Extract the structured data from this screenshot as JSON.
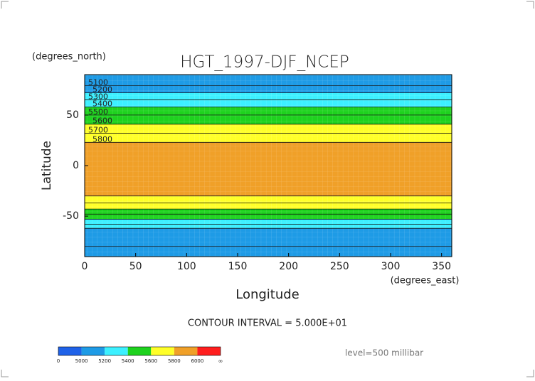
{
  "chart_data": {
    "type": "contour",
    "title": "HGT_1997-DJF_NCEP",
    "y_unit_label": "(degrees_north)",
    "x_unit_label": "(degrees_east)",
    "ylabel": "Latitude",
    "xlabel": "Longitude",
    "contour_interval_label": "CONTOUR INTERVAL = 5.000E+01",
    "level_label": "level=500 millibar",
    "xlim": [
      0,
      360
    ],
    "ylim": [
      90,
      -90
    ],
    "xticks": [
      0,
      50,
      100,
      150,
      200,
      250,
      300,
      350
    ],
    "yticks": [
      50,
      0,
      -50
    ],
    "contours": [
      {
        "level": 5100,
        "lats": [
          79,
          -80
        ]
      },
      {
        "level": 5200,
        "lats": [
          72,
          -62
        ]
      },
      {
        "level": 5300,
        "lats": [
          65,
          -58
        ]
      },
      {
        "level": 5400,
        "lats": [
          58,
          -53
        ]
      },
      {
        "level": 5500,
        "lats": [
          50,
          -48
        ]
      },
      {
        "level": 5600,
        "lats": [
          41,
          -43
        ]
      },
      {
        "level": 5700,
        "lats": [
          32,
          -37
        ]
      },
      {
        "level": 5800,
        "lats": [
          23,
          -30
        ]
      }
    ],
    "colorbar": {
      "levels": [
        0,
        5000,
        5200,
        5400,
        5600,
        5800,
        6000
      ],
      "end_label": "∞",
      "colors": [
        "#1f62e8",
        "#1e9be6",
        "#3cf0ff",
        "#1ed21e",
        "#ffff28",
        "#f0a028",
        "#ff1e1e"
      ]
    }
  }
}
